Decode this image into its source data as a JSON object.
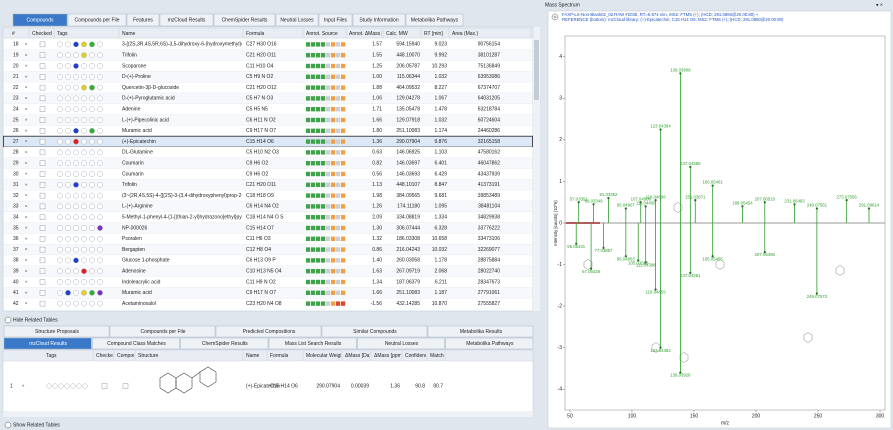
{
  "tabs": [
    "Compounds",
    "Compounds per File",
    "Features",
    "mzCloud Results",
    "ChemSpider Results",
    "Neutral Losses",
    "Input Files",
    "Study Information",
    "Metabolika Pathways"
  ],
  "table": {
    "columns": [
      "#",
      "Checked",
      "Tags",
      "Name",
      "Formula",
      "Annot. Source",
      "Annot. ΔMass [ppm]",
      "Calc. MW",
      "RT [min]",
      "Area (Max.)"
    ],
    "rows": [
      [
        "18",
        "3-[(2S,3R,4S,5R,6S)-3,5-dihydroxy-6-(hydroxymethyl)oxan-2-yl]",
        "C27 H30 O16",
        "1.57",
        "594.15940",
        "9.023",
        "90756154"
      ],
      [
        "19",
        "Trifolin",
        "C21 H20 O11",
        "1.55",
        "448.10070",
        "9.992",
        "38101287"
      ],
      [
        "20",
        "Scoparone",
        "C11 H10 O4",
        "1.25",
        "206.05787",
        "10.293",
        "75136849"
      ],
      [
        "21",
        "D-(+)-Proline",
        "C5 H9 N O2",
        "1.00",
        "115.06344",
        "1.032",
        "63953086"
      ],
      [
        "22",
        "Quercetin-3β-D-glucoside",
        "C21 H20 O12",
        "1.88",
        "464.09532",
        "8.227",
        "67374707"
      ],
      [
        "23",
        "D-(+)-Pyroglutamic acid",
        "C5 H7 N O3",
        "1.06",
        "129.04278",
        "1.067",
        "64031205"
      ],
      [
        "24",
        "Adenine",
        "C5 H5 N5",
        "1.71",
        "135.05478",
        "1.478",
        "63218784"
      ],
      [
        "25",
        "L-(+)-Pipecolinic acid",
        "C6 H11 N O2",
        "1.66",
        "129.07918",
        "1.032",
        "60724604"
      ],
      [
        "26",
        "Muramic acid",
        "C9 H17 N O7",
        "1.80",
        "251.10083",
        "1.174",
        "24460286"
      ],
      [
        "27",
        "(+)-Epicatechin",
        "C15 H14 O6",
        "1.36",
        "290.07904",
        "9.876",
        "32165158"
      ],
      [
        "28",
        "DL-Glutamine",
        "C5 H10 N2 O3",
        "0.63",
        "146.06925",
        "1.103",
        "47580162"
      ],
      [
        "29",
        "Coumarin",
        "C9 H6 O2",
        "0.82",
        "146.03697",
        "6.401",
        "46047862"
      ],
      [
        "30",
        "Coumarin",
        "C9 H6 O2",
        "0.56",
        "146.03693",
        "6.429",
        "43437939"
      ],
      [
        "31",
        "Trifolin",
        "C21 H20 O11",
        "1.13",
        "448.10107",
        "8.847",
        "41373191"
      ],
      [
        "32",
        "(3~(2R,4S,5S)-4-{[(2S)-3-(3,4-dihydroxyphenyl)prop-2-enoyl]oxy}",
        "C18 H18 O9",
        "1.98",
        "384.09565",
        "9.681",
        "39853489"
      ],
      [
        "33",
        "L-(+)-Arginine",
        "C6 H14 N4 O2",
        "1.26",
        "174.11180",
        "1.095",
        "38481104"
      ],
      [
        "34",
        "5-Methyl-1-phenyl-4-{1-[(thian-2-yl)hydrazono]ethyl}pyrazole",
        "C18 H14 N4 O S",
        "2.09",
        "334.08819",
        "1.334",
        "34829938"
      ],
      [
        "35",
        "NP-000026",
        "C15 H14 O7",
        "1.30",
        "306.07444",
        "6.328",
        "33776222"
      ],
      [
        "36",
        "Psoralen",
        "C11 H6 O3",
        "1.32",
        "186.03308",
        "10.658",
        "33473106"
      ],
      [
        "37",
        "Bergapten",
        "C12 H8 O4",
        "0.86",
        "216.04243",
        "10.032",
        "32269077"
      ],
      [
        "38",
        "Glucose 1-phosphate",
        "C6 H13 O9 P",
        "1.40",
        "260.03058",
        "1.178",
        "28875884"
      ],
      [
        "39",
        "Adenosine",
        "C10 H13 N5 O4",
        "1.63",
        "267.09719",
        "2.068",
        "28022740"
      ],
      [
        "40",
        "Indoleacrylic acid",
        "C11 H9 N O2",
        "1.34",
        "187.06379",
        "6.211",
        "28347673"
      ],
      [
        "41",
        "Muramic acid",
        "C9 H17 N O7",
        "1.66",
        "251.10083",
        "1.187",
        "27791061"
      ],
      [
        "42",
        "Acetaminosalol",
        "C23 H20 N4 O8",
        "-1.56",
        "432.14285",
        "10.870",
        "27555827"
      ]
    ],
    "tags": [
      [
        null,
        null,
        "#1f3fd0",
        "#e0d020",
        "#30b030",
        null
      ],
      [
        null,
        null,
        null,
        "#e0d020",
        null,
        null
      ],
      [
        null,
        null,
        "#1f3fd0",
        null,
        null,
        null
      ],
      [
        null,
        null,
        null,
        null,
        null,
        null
      ],
      [
        null,
        null,
        null,
        "#e0d020",
        "#30b030",
        null
      ],
      [
        null,
        null,
        null,
        null,
        null,
        null
      ],
      [
        null,
        null,
        null,
        null,
        null,
        null
      ],
      [
        null,
        null,
        null,
        null,
        null,
        null
      ],
      [
        null,
        null,
        "#1f3fd0",
        null,
        "#30b030",
        null
      ],
      [
        null,
        null,
        "#e02020",
        null,
        null,
        null
      ],
      [
        null,
        null,
        null,
        null,
        null,
        null
      ],
      [
        null,
        null,
        null,
        null,
        null,
        null
      ],
      [
        null,
        null,
        null,
        null,
        null,
        null
      ],
      [
        null,
        null,
        "#1f3fd0",
        null,
        null,
        null
      ],
      [
        null,
        null,
        null,
        null,
        null,
        null
      ],
      [
        null,
        null,
        null,
        null,
        null,
        null
      ],
      [
        null,
        null,
        null,
        null,
        null,
        null
      ],
      [
        null,
        null,
        null,
        null,
        null,
        "#8030c0"
      ],
      [
        null,
        null,
        null,
        null,
        null,
        null
      ],
      [
        null,
        null,
        null,
        null,
        null,
        null
      ],
      [
        null,
        null,
        "#1f3fd0",
        null,
        null,
        null
      ],
      [
        null,
        null,
        null,
        "#e02020",
        null,
        null
      ],
      [
        null,
        null,
        null,
        null,
        null,
        null
      ],
      [
        null,
        "#1f3fd0",
        null,
        "#e0d020",
        "#30b030",
        "#8030c0"
      ],
      [
        null,
        null,
        null,
        null,
        null,
        null
      ]
    ]
  },
  "related": {
    "hide": "Hide Related Tables",
    "tabs_row1": [
      "Structure Proposals",
      "Compounds per File",
      "Predicted Compositions",
      "Similar Compounds",
      "Metabolika Results"
    ],
    "tabs_row2": [
      "mzCloud Results",
      "Compound Class Matches",
      "ChemSpider Results",
      "Mass List Search Results",
      "Neutral Losses",
      "Metabolika Pathways"
    ],
    "columns": [
      "Tags",
      "Checked",
      "Compound",
      "Structure",
      "Name",
      "Formula",
      "Molecular Weight",
      "ΔMass [Da]",
      "ΔMass [ppm]",
      "Confidence",
      "Match"
    ],
    "row": [
      "1",
      "(+)-Epicatechin",
      "C15 H14 O6",
      "290.07904",
      "0.00039",
      "1.36",
      "90.8",
      "90.7"
    ],
    "show": "Show Related Tables"
  },
  "chart_data": {
    "type": "spectrum",
    "title": "Mass Spectrum",
    "header_lines": [
      "FAXP-LS-Non-Blank02_02.RAW #2035, RT=9.874 min, MS2: FTMS (+); (HCD; 291.0860@20.00:80) +",
      "REFERENCE (bottom): mzCloud library; (+)-Epicatechin; C15 H14 O6; MS2: FTMS (+); (HCD; 291.0860@20.00:80)"
    ],
    "header_color": "#2050c0",
    "xlabel": "m/z",
    "ylabel": "Intensity [counts] (10^6)",
    "xlim": [
      46,
      304
    ],
    "ylim": [
      -4.5,
      4.5
    ],
    "xticks": [
      50,
      100,
      150,
      200,
      250,
      300
    ],
    "yticks": [
      4,
      3,
      2,
      1,
      0,
      -1,
      -2,
      -3,
      -4
    ],
    "series": [
      {
        "color": "#2e9e2e",
        "x": [
          57.03351,
          69.03349,
          81.03352,
          95.04907,
          107.04906,
          111.04405,
          119.04898,
          123.04394,
          139.03909,
          147.04389,
          151.03871,
          165.05461,
          189.05454,
          207.06519,
          231.06493,
          249.07561,
          273.07556,
          291.08614
        ],
        "values": [
          0.5,
          0.45,
          0.6,
          0.35,
          0.5,
          0.4,
          0.55,
          2.25,
          3.6,
          1.35,
          0.55,
          0.9,
          0.4,
          0.5,
          0.45,
          0.35,
          0.55,
          0.35
        ]
      },
      {
        "color": "#2e9e2e",
        "x": [
          55.05431,
          67.05428,
          77.03857,
          95.04953,
          105.03325,
          111.04398,
          119.04859,
          123.04382,
          139.03926,
          147.04381,
          165.05455,
          207.06496,
          249.07573
        ],
        "values": [
          -0.5,
          -1.1,
          -0.6,
          -0.8,
          -0.9,
          -0.95,
          -1.6,
          -3.0,
          -3.6,
          -1.2,
          -0.8,
          -0.7,
          -1.7
        ]
      }
    ]
  }
}
